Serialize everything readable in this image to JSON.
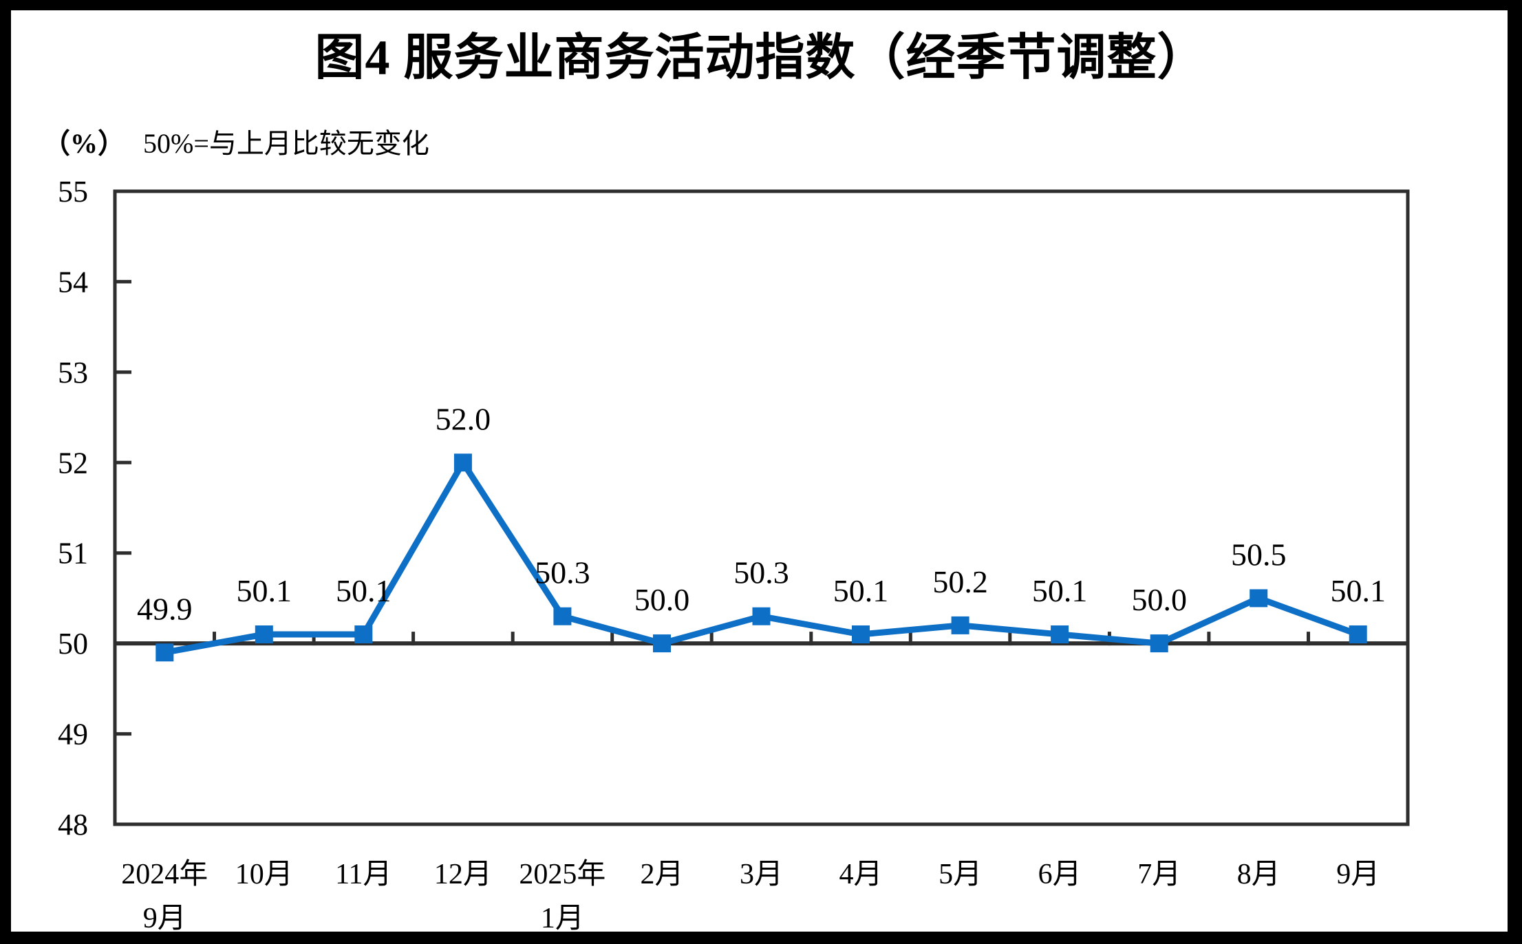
{
  "page": {
    "background": "#FFFFFF",
    "border_color": "#000000"
  },
  "header": {
    "title": "图4  服务业商务活动指数（经季节调整）",
    "unit_label": "（%）",
    "reference_note": "50%=与上月比较无变化"
  },
  "colors": {
    "series_line": "#0D6FC6",
    "axis": "#2E2E2E",
    "label_text": "#000000"
  },
  "chart_data": {
    "type": "line",
    "title": "图4  服务业商务活动指数（经季节调整）",
    "unit": "%",
    "subtitle_note": "50%=与上月比较无变化",
    "categories": [
      "2024年\n9月",
      "10月",
      "11月",
      "12月",
      "2025年\n1月",
      "2月",
      "3月",
      "4月",
      "5月",
      "6月",
      "7月",
      "8月",
      "9月"
    ],
    "values": [
      49.9,
      50.1,
      50.1,
      52.0,
      50.3,
      50.0,
      50.3,
      50.1,
      50.2,
      50.1,
      50.0,
      50.5,
      50.1
    ],
    "point_labels": [
      "49.9",
      "50.1",
      "50.1",
      "52.0",
      "50.3",
      "50.0",
      "50.3",
      "50.1",
      "50.2",
      "50.1",
      "50.0",
      "50.5",
      "50.1"
    ],
    "ylim": [
      48,
      55
    ],
    "yticks": [
      48,
      49,
      50,
      51,
      52,
      53,
      54,
      55
    ],
    "reference_line_y": 50,
    "grid": false,
    "legend_position": "none",
    "marker": "square"
  }
}
